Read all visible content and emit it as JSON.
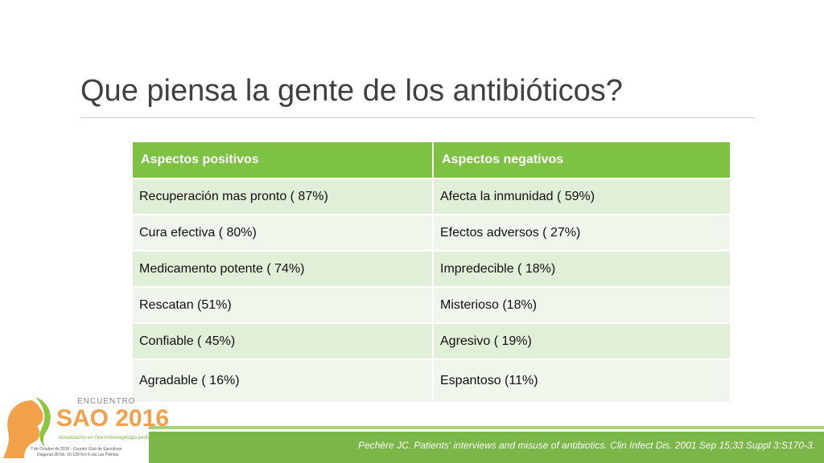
{
  "title": "Que piensa la gente de los antibióticos?",
  "table": {
    "header": [
      "Aspectos positivos",
      "Aspectos negativos"
    ],
    "rows": [
      [
        "Recuperación mas pronto ( 87%)",
        "Afecta la inmunidad ( 59%)"
      ],
      [
        "Cura efectiva ( 80%)",
        "Efectos adversos ( 27%)"
      ],
      [
        "Medicamento potente ( 74%)",
        "Impredecible ( 18%)"
      ],
      [
        "Rescatan (51%)",
        "Misterioso (18%)"
      ],
      [
        "Confiable ( 45%)",
        "Agresivo ( 19%)"
      ],
      [
        "Agradable ( 16%)",
        "Espantoso (11%)"
      ]
    ]
  },
  "citation": "Pechère JC. Patients' interviews and misuse of antibiotics. Clin Infect Dis. 2001 Sep 15;33 Suppl 3:S170-3.",
  "logo": {
    "top": "ENCUENTRO",
    "name": "SAO 2016",
    "subtitle": "Actualización en Otorrinolaringología pediátrica",
    "line1": "7 de Octubre de 2016 · Country Club de Ejecutivos",
    "line2": "Diagonal 28 No. 16-129 Km 5 vía Las Palmas"
  }
}
